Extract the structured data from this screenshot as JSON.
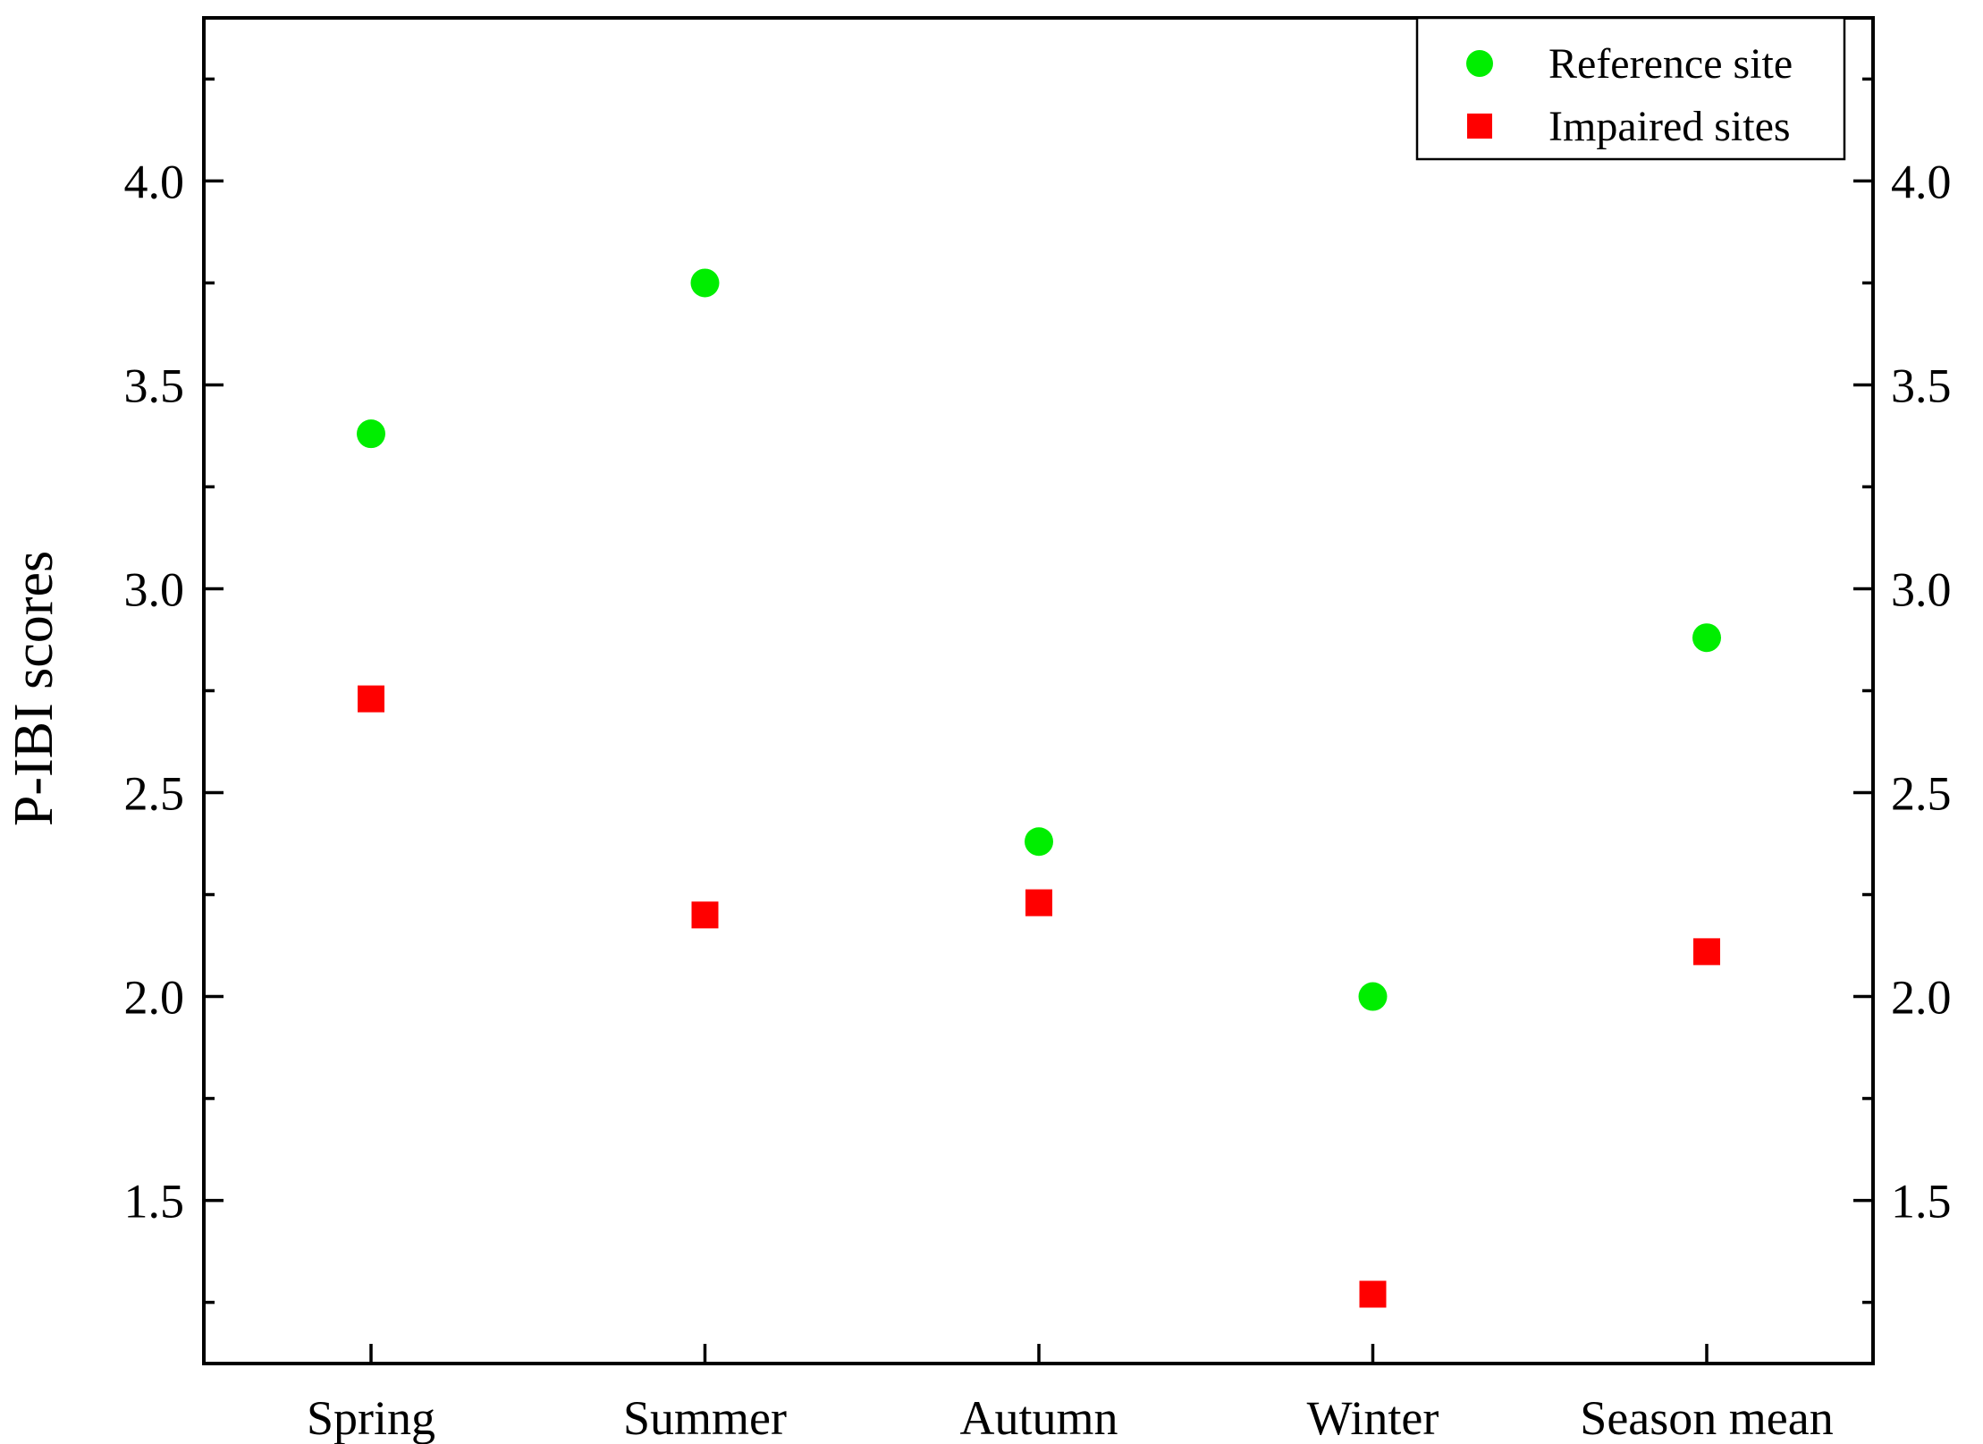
{
  "chart_data": {
    "type": "scatter",
    "title": "",
    "xlabel": "",
    "ylabel": "P-IBI scores",
    "categories": [
      "Spring",
      "Summer",
      "Autumn",
      "Winter",
      "Season mean"
    ],
    "ylim": [
      1.1,
      4.4
    ],
    "yticks": [
      1.5,
      2.0,
      2.5,
      3.0,
      3.5,
      4.0
    ],
    "ytick_labels": [
      "1.5",
      "2.0",
      "2.5",
      "3.0",
      "3.5",
      "4.0"
    ],
    "secondary_y_axis": true,
    "grid": false,
    "legend_position": "top-right",
    "series": [
      {
        "name": "Reference site",
        "marker": "circle",
        "color": "#00ee00",
        "values": [
          3.38,
          3.75,
          2.38,
          2.0,
          2.88
        ]
      },
      {
        "name": "Impaired sites",
        "marker": "square",
        "color": "#ff0000",
        "values": [
          2.73,
          2.2,
          2.23,
          1.27,
          2.11
        ]
      }
    ]
  }
}
